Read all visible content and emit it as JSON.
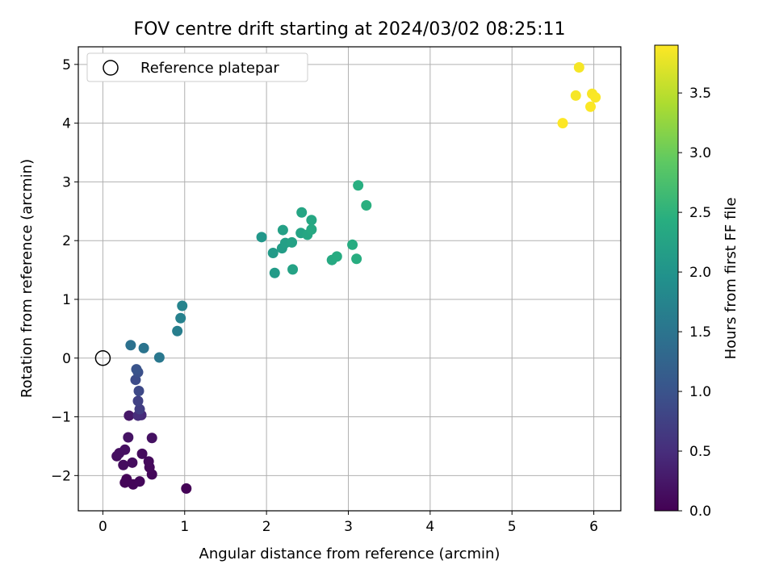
{
  "chart_data": {
    "type": "scatter",
    "title": "FOV centre drift starting at 2024/03/02 08:25:11",
    "xlabel": "Angular distance from reference (arcmin)",
    "ylabel": "Rotation from reference (arcmin)",
    "xlim": [
      -0.3,
      6.33
    ],
    "ylim": [
      -2.6,
      5.3
    ],
    "xticks": [
      "0",
      "1",
      "2",
      "3",
      "4",
      "5",
      "6"
    ],
    "xtick_values": [
      0,
      1,
      2,
      3,
      4,
      5,
      6
    ],
    "yticks": [
      "−2",
      "−1",
      "0",
      "1",
      "2",
      "3",
      "4",
      "5"
    ],
    "ytick_values": [
      -2,
      -1,
      0,
      1,
      2,
      3,
      4,
      5
    ],
    "grid": true,
    "legend": {
      "position": "top-left",
      "entries": [
        "Reference platepar"
      ]
    },
    "reference_point": {
      "x": 0,
      "y": 0,
      "marker": "open-circle"
    },
    "colorbar": {
      "label": "Hours from first FF file",
      "colormap": "viridis",
      "range": [
        0,
        3.9
      ],
      "ticks": [
        "0.0",
        "0.5",
        "1.0",
        "1.5",
        "2.0",
        "2.5",
        "3.0",
        "3.5"
      ],
      "tick_values": [
        0,
        0.5,
        1.0,
        1.5,
        2.0,
        2.5,
        3.0,
        3.5
      ]
    },
    "points": [
      {
        "x": 1.02,
        "y": -2.22,
        "c": 0.02
      },
      {
        "x": 0.29,
        "y": -2.06,
        "c": 0.04
      },
      {
        "x": 0.27,
        "y": -2.12,
        "c": 0.05
      },
      {
        "x": 0.37,
        "y": -2.15,
        "c": 0.06
      },
      {
        "x": 0.45,
        "y": -2.1,
        "c": 0.07
      },
      {
        "x": 0.6,
        "y": -1.98,
        "c": 0.08
      },
      {
        "x": 0.57,
        "y": -1.86,
        "c": 0.09
      },
      {
        "x": 0.56,
        "y": -1.76,
        "c": 0.1
      },
      {
        "x": 0.48,
        "y": -1.63,
        "c": 0.11
      },
      {
        "x": 0.36,
        "y": -1.78,
        "c": 0.12
      },
      {
        "x": 0.25,
        "y": -1.82,
        "c": 0.13
      },
      {
        "x": 0.17,
        "y": -1.67,
        "c": 0.14
      },
      {
        "x": 0.2,
        "y": -1.62,
        "c": 0.15
      },
      {
        "x": 0.27,
        "y": -1.56,
        "c": 0.16
      },
      {
        "x": 0.6,
        "y": -1.36,
        "c": 0.18
      },
      {
        "x": 0.31,
        "y": -1.35,
        "c": 0.2
      },
      {
        "x": 0.32,
        "y": -0.98,
        "c": 0.25
      },
      {
        "x": 0.47,
        "y": -0.97,
        "c": 0.45
      },
      {
        "x": 0.43,
        "y": -0.98,
        "c": 0.5
      },
      {
        "x": 0.45,
        "y": -0.87,
        "c": 0.7
      },
      {
        "x": 0.43,
        "y": -0.73,
        "c": 0.75
      },
      {
        "x": 0.44,
        "y": -0.56,
        "c": 0.85
      },
      {
        "x": 0.4,
        "y": -0.37,
        "c": 0.9
      },
      {
        "x": 0.43,
        "y": -0.24,
        "c": 0.95
      },
      {
        "x": 0.41,
        "y": -0.19,
        "c": 1.0
      },
      {
        "x": 0.34,
        "y": 0.22,
        "c": 1.45
      },
      {
        "x": 0.5,
        "y": 0.17,
        "c": 1.5
      },
      {
        "x": 0.69,
        "y": 0.01,
        "c": 1.55
      },
      {
        "x": 0.91,
        "y": 0.46,
        "c": 1.65
      },
      {
        "x": 0.95,
        "y": 0.68,
        "c": 1.7
      },
      {
        "x": 0.97,
        "y": 0.89,
        "c": 1.75
      },
      {
        "x": 1.94,
        "y": 2.06,
        "c": 2.05
      },
      {
        "x": 2.08,
        "y": 1.79,
        "c": 2.1
      },
      {
        "x": 2.1,
        "y": 1.45,
        "c": 2.12
      },
      {
        "x": 2.19,
        "y": 1.87,
        "c": 2.15
      },
      {
        "x": 2.23,
        "y": 1.96,
        "c": 2.18
      },
      {
        "x": 2.2,
        "y": 2.18,
        "c": 2.2
      },
      {
        "x": 2.31,
        "y": 1.97,
        "c": 2.22
      },
      {
        "x": 2.32,
        "y": 1.51,
        "c": 2.24
      },
      {
        "x": 2.42,
        "y": 2.13,
        "c": 2.26
      },
      {
        "x": 2.43,
        "y": 2.48,
        "c": 2.28
      },
      {
        "x": 2.5,
        "y": 2.1,
        "c": 2.3
      },
      {
        "x": 2.55,
        "y": 2.35,
        "c": 2.32
      },
      {
        "x": 2.55,
        "y": 2.19,
        "c": 2.34
      },
      {
        "x": 2.8,
        "y": 1.67,
        "c": 2.36
      },
      {
        "x": 2.86,
        "y": 1.73,
        "c": 2.38
      },
      {
        "x": 3.05,
        "y": 1.93,
        "c": 2.4
      },
      {
        "x": 3.1,
        "y": 1.69,
        "c": 2.42
      },
      {
        "x": 3.12,
        "y": 2.94,
        "c": 2.44
      },
      {
        "x": 3.22,
        "y": 2.6,
        "c": 2.46
      },
      {
        "x": 5.82,
        "y": 4.95,
        "c": 3.85
      },
      {
        "x": 5.78,
        "y": 4.47,
        "c": 3.86
      },
      {
        "x": 5.98,
        "y": 4.5,
        "c": 3.87
      },
      {
        "x": 6.02,
        "y": 4.44,
        "c": 3.88
      },
      {
        "x": 5.96,
        "y": 4.28,
        "c": 3.89
      },
      {
        "x": 5.62,
        "y": 4.0,
        "c": 3.9
      }
    ]
  }
}
